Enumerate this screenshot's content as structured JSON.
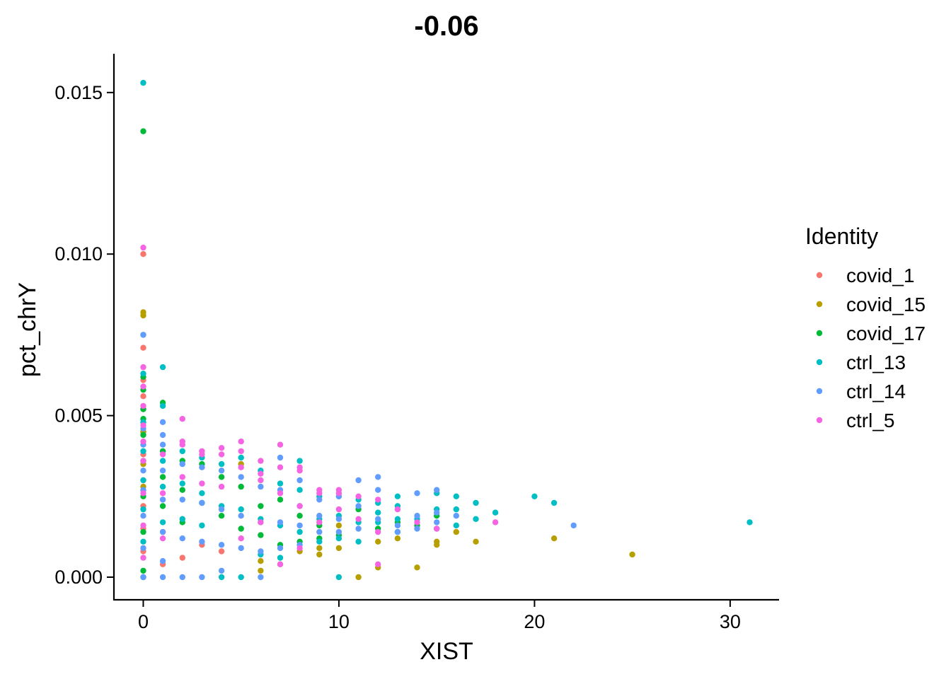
{
  "chart_data": {
    "type": "scatter",
    "title": "-0.06",
    "xlabel": "XIST",
    "ylabel": "pct_chrY",
    "xlim": [
      -1.5,
      32.5
    ],
    "ylim": [
      -0.0007,
      0.0162
    ],
    "x_ticks": [
      {
        "value": 0,
        "label": "0"
      },
      {
        "value": 10,
        "label": "10"
      },
      {
        "value": 20,
        "label": "20"
      },
      {
        "value": 30,
        "label": "30"
      }
    ],
    "y_ticks": [
      {
        "value": 0.0,
        "label": "0.000"
      },
      {
        "value": 0.005,
        "label": "0.005"
      },
      {
        "value": 0.01,
        "label": "0.010"
      },
      {
        "value": 0.015,
        "label": "0.015"
      }
    ],
    "grid": false,
    "legend": {
      "title": "Identity",
      "position": "right"
    },
    "series": [
      {
        "name": "covid_1",
        "color": "#F8766D",
        "points": [
          [
            0,
            0.0
          ],
          [
            0,
            0.0008
          ],
          [
            0,
            0.0015
          ],
          [
            0,
            0.0022
          ],
          [
            0,
            0.003
          ],
          [
            0,
            0.0038
          ],
          [
            0,
            0.0045
          ],
          [
            0,
            0.0052
          ],
          [
            0,
            0.0056
          ],
          [
            0,
            0.0061
          ],
          [
            0,
            0.0071
          ],
          [
            0,
            0.01
          ],
          [
            1,
            0.0004
          ],
          [
            1,
            0.0014
          ],
          [
            1,
            0.0024
          ],
          [
            2,
            0.0006
          ],
          [
            2,
            0.0018
          ],
          [
            3,
            0.001
          ],
          [
            4,
            0.0008
          ]
        ]
      },
      {
        "name": "covid_15",
        "color": "#B79F00",
        "points": [
          [
            0,
            0.0082
          ],
          [
            0,
            0.0081
          ],
          [
            0,
            0.0045
          ],
          [
            0,
            0.0035
          ],
          [
            0,
            0.0028
          ],
          [
            5,
            0.0035
          ],
          [
            6,
            0.0002
          ],
          [
            6,
            0.0005
          ],
          [
            7,
            0.0004
          ],
          [
            8,
            0.0008
          ],
          [
            9,
            0.0007
          ],
          [
            9,
            0.0009
          ],
          [
            10,
            0.0009
          ],
          [
            10,
            0.0016
          ],
          [
            11,
            0.0
          ],
          [
            12,
            0.0003
          ],
          [
            12,
            0.0011
          ],
          [
            13,
            0.0012
          ],
          [
            14,
            0.0003
          ],
          [
            15,
            0.001
          ],
          [
            15,
            0.0011
          ],
          [
            16,
            0.0014
          ],
          [
            17,
            0.0011
          ],
          [
            21,
            0.0012
          ],
          [
            25,
            0.0007
          ]
        ]
      },
      {
        "name": "covid_17",
        "color": "#00BA38",
        "points": [
          [
            0,
            0.0138
          ],
          [
            0,
            0.0075
          ],
          [
            0,
            0.0062
          ],
          [
            0,
            0.0058
          ],
          [
            0,
            0.0052
          ],
          [
            0,
            0.0049
          ],
          [
            0,
            0.0044
          ],
          [
            0,
            0.0036
          ],
          [
            0,
            0.0025
          ],
          [
            0,
            0.0014
          ],
          [
            0,
            0.0002
          ],
          [
            1,
            0.0054
          ],
          [
            1,
            0.0039
          ],
          [
            1,
            0.0031
          ],
          [
            1,
            0.0022
          ],
          [
            2,
            0.0036
          ],
          [
            2,
            0.0027
          ],
          [
            2,
            0.0017
          ],
          [
            3,
            0.0035
          ],
          [
            3,
            0.0023
          ],
          [
            4,
            0.0031
          ],
          [
            4,
            0.0019
          ],
          [
            5,
            0.0028
          ],
          [
            5,
            0.0015
          ],
          [
            6,
            0.0022
          ],
          [
            6,
            0.0013
          ],
          [
            7,
            0.0024
          ],
          [
            7,
            0.001
          ],
          [
            8,
            0.0019
          ],
          [
            8,
            0.0011
          ],
          [
            9,
            0.0016
          ],
          [
            9,
            0.0012
          ],
          [
            10,
            0.0013
          ],
          [
            11,
            0.0021
          ],
          [
            12,
            0.0015
          ],
          [
            13,
            0.0017
          ],
          [
            14,
            0.0016
          ],
          [
            15,
            0.0019
          ]
        ]
      },
      {
        "name": "ctrl_13",
        "color": "#00BFC4",
        "points": [
          [
            0,
            0.0153
          ],
          [
            0,
            0.0063
          ],
          [
            0,
            0.0048
          ],
          [
            0,
            0.0039
          ],
          [
            0,
            0.003
          ],
          [
            0,
            0.0021
          ],
          [
            0,
            0.0011
          ],
          [
            0,
            0.0
          ],
          [
            1,
            0.0065
          ],
          [
            1,
            0.0053
          ],
          [
            1,
            0.0036
          ],
          [
            1,
            0.0028
          ],
          [
            1,
            0.0017
          ],
          [
            2,
            0.0039
          ],
          [
            2,
            0.0029
          ],
          [
            2,
            0.0018
          ],
          [
            3,
            0.0037
          ],
          [
            3,
            0.0026
          ],
          [
            3,
            0.0016
          ],
          [
            4,
            0.0035
          ],
          [
            4,
            0.0022
          ],
          [
            4,
            0.0
          ],
          [
            5,
            0.0037
          ],
          [
            5,
            0.0021
          ],
          [
            5,
            0.0
          ],
          [
            6,
            0.0033
          ],
          [
            6,
            0.0018
          ],
          [
            6,
            0.0007
          ],
          [
            7,
            0.0029
          ],
          [
            7,
            0.0016
          ],
          [
            7,
            0.0006
          ],
          [
            8,
            0.0036
          ],
          [
            8,
            0.0027
          ],
          [
            8,
            0.0014
          ],
          [
            9,
            0.0025
          ],
          [
            9,
            0.0018
          ],
          [
            9,
            0.0011
          ],
          [
            10,
            0.0025
          ],
          [
            10,
            0.0019
          ],
          [
            10,
            0.0012
          ],
          [
            10,
            0.0
          ],
          [
            11,
            0.0024
          ],
          [
            11,
            0.0017
          ],
          [
            11,
            0.0011
          ],
          [
            12,
            0.0023
          ],
          [
            12,
            0.002
          ],
          [
            12,
            0.0017
          ],
          [
            13,
            0.0025
          ],
          [
            13,
            0.0022
          ],
          [
            13,
            0.0018
          ],
          [
            13,
            0.0014
          ],
          [
            14,
            0.0018
          ],
          [
            15,
            0.0026
          ],
          [
            15,
            0.0021
          ],
          [
            15,
            0.0015
          ],
          [
            16,
            0.0025
          ],
          [
            16,
            0.0021
          ],
          [
            16,
            0.0016
          ],
          [
            17,
            0.0023
          ],
          [
            17,
            0.0018
          ],
          [
            18,
            0.002
          ],
          [
            20,
            0.0025
          ],
          [
            21,
            0.0023
          ],
          [
            31,
            0.0017
          ]
        ]
      },
      {
        "name": "ctrl_14",
        "color": "#619CFF",
        "points": [
          [
            0,
            0.0075
          ],
          [
            0,
            0.0046
          ],
          [
            0,
            0.0041
          ],
          [
            0,
            0.0033
          ],
          [
            0,
            0.0027
          ],
          [
            0,
            0.0019
          ],
          [
            0,
            0.0009
          ],
          [
            0,
            0.0
          ],
          [
            1,
            0.0048
          ],
          [
            1,
            0.0044
          ],
          [
            1,
            0.0041
          ],
          [
            1,
            0.0033
          ],
          [
            1,
            0.0024
          ],
          [
            1,
            0.0014
          ],
          [
            1,
            0.0005
          ],
          [
            1,
            0.0
          ],
          [
            2,
            0.0035
          ],
          [
            2,
            0.0024
          ],
          [
            2,
            0.0012
          ],
          [
            2,
            0.0
          ],
          [
            3,
            0.0034
          ],
          [
            3,
            0.0023
          ],
          [
            3,
            0.0011
          ],
          [
            3,
            0.0
          ],
          [
            4,
            0.0033
          ],
          [
            4,
            0.0021
          ],
          [
            4,
            0.001
          ],
          [
            4,
            0.0002
          ],
          [
            5,
            0.0031
          ],
          [
            5,
            0.0019
          ],
          [
            5,
            0.0009
          ],
          [
            6,
            0.0028
          ],
          [
            6,
            0.0017
          ],
          [
            6,
            0.0008
          ],
          [
            6,
            0.0
          ],
          [
            7,
            0.0037
          ],
          [
            7,
            0.0027
          ],
          [
            7,
            0.0017
          ],
          [
            7,
            0.0009
          ],
          [
            8,
            0.003
          ],
          [
            8,
            0.0022
          ],
          [
            8,
            0.0016
          ],
          [
            8,
            0.001
          ],
          [
            9,
            0.0024
          ],
          [
            9,
            0.0019
          ],
          [
            9,
            0.0014
          ],
          [
            10,
            0.0025
          ],
          [
            10,
            0.0018
          ],
          [
            10,
            0.0014
          ],
          [
            11,
            0.003
          ],
          [
            11,
            0.0022
          ],
          [
            11,
            0.0015
          ],
          [
            12,
            0.0031
          ],
          [
            12,
            0.0027
          ],
          [
            12,
            0.0018
          ],
          [
            13,
            0.0016
          ],
          [
            13,
            0.0014
          ],
          [
            14,
            0.0026
          ],
          [
            14,
            0.0019
          ],
          [
            14,
            0.0015
          ],
          [
            15,
            0.0027
          ],
          [
            15,
            0.002
          ],
          [
            15,
            0.0017
          ],
          [
            16,
            0.0019
          ],
          [
            22,
            0.0016
          ]
        ]
      },
      {
        "name": "ctrl_5",
        "color": "#F564E3",
        "points": [
          [
            0,
            0.0102
          ],
          [
            0,
            0.0065
          ],
          [
            0,
            0.0059
          ],
          [
            0,
            0.0053
          ],
          [
            0,
            0.0047
          ],
          [
            0,
            0.0042
          ],
          [
            0,
            0.0036
          ],
          [
            0,
            0.0026
          ],
          [
            0,
            0.0016
          ],
          [
            0,
            0.0006
          ],
          [
            1,
            0.0038
          ],
          [
            1,
            0.0026
          ],
          [
            1,
            0.0012
          ],
          [
            2,
            0.0049
          ],
          [
            2,
            0.0042
          ],
          [
            2,
            0.0041
          ],
          [
            2,
            0.0031
          ],
          [
            3,
            0.0039
          ],
          [
            3,
            0.0038
          ],
          [
            3,
            0.0029
          ],
          [
            4,
            0.004
          ],
          [
            4,
            0.0038
          ],
          [
            4,
            0.0028
          ],
          [
            5,
            0.0042
          ],
          [
            5,
            0.0039
          ],
          [
            5,
            0.0034
          ],
          [
            5,
            0.0012
          ],
          [
            6,
            0.0036
          ],
          [
            6,
            0.0032
          ],
          [
            6,
            0.003
          ],
          [
            6,
            0.0017
          ],
          [
            7,
            0.0041
          ],
          [
            7,
            0.0034
          ],
          [
            7,
            0.0026
          ],
          [
            7,
            0.0004
          ],
          [
            8,
            0.0034
          ],
          [
            8,
            0.0033
          ],
          [
            8,
            0.0022
          ],
          [
            8,
            0.0009
          ],
          [
            9,
            0.0027
          ],
          [
            9,
            0.0026
          ],
          [
            9,
            0.0017
          ],
          [
            10,
            0.0027
          ],
          [
            10,
            0.0026
          ],
          [
            10,
            0.0021
          ],
          [
            11,
            0.0025
          ],
          [
            11,
            0.0018
          ],
          [
            12,
            0.0024
          ],
          [
            12,
            0.0014
          ],
          [
            12,
            0.0004
          ],
          [
            13,
            0.0021
          ],
          [
            14,
            0.0017
          ],
          [
            15,
            0.0015
          ],
          [
            18,
            0.0017
          ]
        ]
      }
    ]
  }
}
